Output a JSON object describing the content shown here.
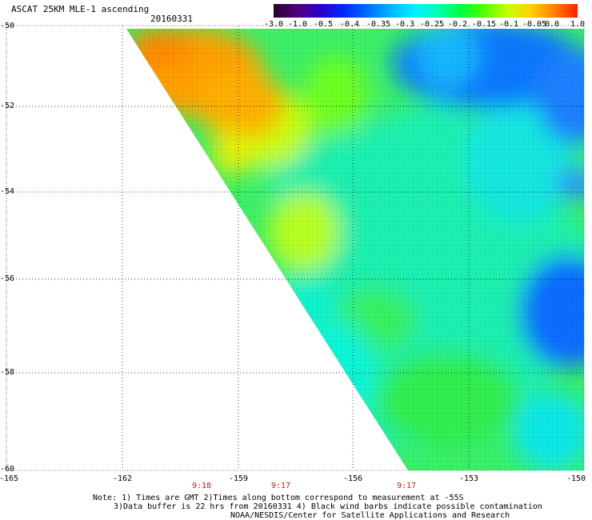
{
  "title": "ASCAT 25KM MLE-1 ascending",
  "date": "20160331",
  "colorbar": {
    "labels": [
      "-3.0",
      "-1.0",
      "-0.5",
      "-0.4",
      "-0.35",
      "-0.3",
      "-0.25",
      "-0.2",
      "-0.15",
      "-0.1",
      "-0.05",
      "0.0",
      "1.0"
    ],
    "colors": [
      "#2a0030",
      "#50007a",
      "#2a00c8",
      "#0028ff",
      "#006cff",
      "#00b4ff",
      "#00f0ff",
      "#00ffb4",
      "#00ff40",
      "#50ff00",
      "#c8ff00",
      "#ffd000",
      "#ff8000",
      "#ff2000"
    ]
  },
  "lat_labels": [
    "-50",
    "-52",
    "-54",
    "-56",
    "-58",
    "-60"
  ],
  "lon_labels": [
    "-165",
    "-162",
    "-159",
    "-156",
    "-153",
    "-150"
  ],
  "time_labels": [
    "9:18",
    "9:17",
    "9:17"
  ],
  "notes": [
    "Note: 1) Times are GMT 2)Times along bottom correspond to measurement at -55S",
    "3)Data buffer is 22 hrs from 20160331 4) Black wind barbs indicate possible contamination",
    "NOAA/NESDIS/Center for Satellite Applications and Research"
  ],
  "colors": {
    "time_label": "#c02010"
  }
}
